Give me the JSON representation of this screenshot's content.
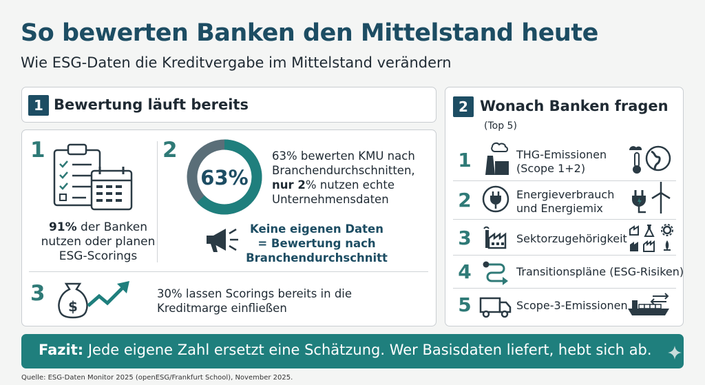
{
  "title": "So bewerten Banken den Mittelstand heute",
  "subtitle": "Wie ESG-Daten die Kreditvergabe im Mittelstand verändern",
  "section1": {
    "number": "1",
    "heading": "Bewertung läuft bereits",
    "item1": {
      "number": "1",
      "strong": "91%",
      "text": " der Banken nutzen oder planen ESG-Scorings"
    },
    "item2": {
      "number": "2",
      "donut_value": 63,
      "donut_label": "63%",
      "text_a": "63% bewerten KMU nach Branchendurchschnitten, ",
      "text_strong": "nur 2",
      "text_b": "% nutzen echte Unternehmensdaten",
      "callout": "Keine eigenen Daten = Bewertung nach Branchendurchschnitt"
    },
    "item3": {
      "number": "3",
      "text": "30% lassen Scorings bereits in die Kreditmarge einfließen"
    }
  },
  "section2": {
    "number": "2",
    "heading": "Wonach Banken fragen",
    "sub": "(Top 5)",
    "items": [
      {
        "number": "1",
        "line1": "THG-Emissionen",
        "line2": "(Scope 1+2)"
      },
      {
        "number": "2",
        "line1": "Energieverbrauch",
        "line2": "und Energiemix"
      },
      {
        "number": "3",
        "line1": "Sektorzugehörigkeit",
        "line2": ""
      },
      {
        "number": "4",
        "line1": "Transitionspläne (ESG-Risiken)",
        "line2": ""
      },
      {
        "number": "5",
        "line1": "Scope-3-Emissionen",
        "line2": ""
      }
    ]
  },
  "banner": {
    "strong": "Fazit:",
    "text": " Jede eigene Zahl ersetzt eine Schätzung. Wer Basisdaten liefert, hebt sich ab."
  },
  "source": "Quelle: ESG-Daten Monitor 2025 (openESG/Frankfurt School), November 2025.",
  "colors": {
    "navy": "#1d4d63",
    "teal": "#2f7a77",
    "banner": "#1f7f7d",
    "donut_track": "#5a6e78"
  }
}
